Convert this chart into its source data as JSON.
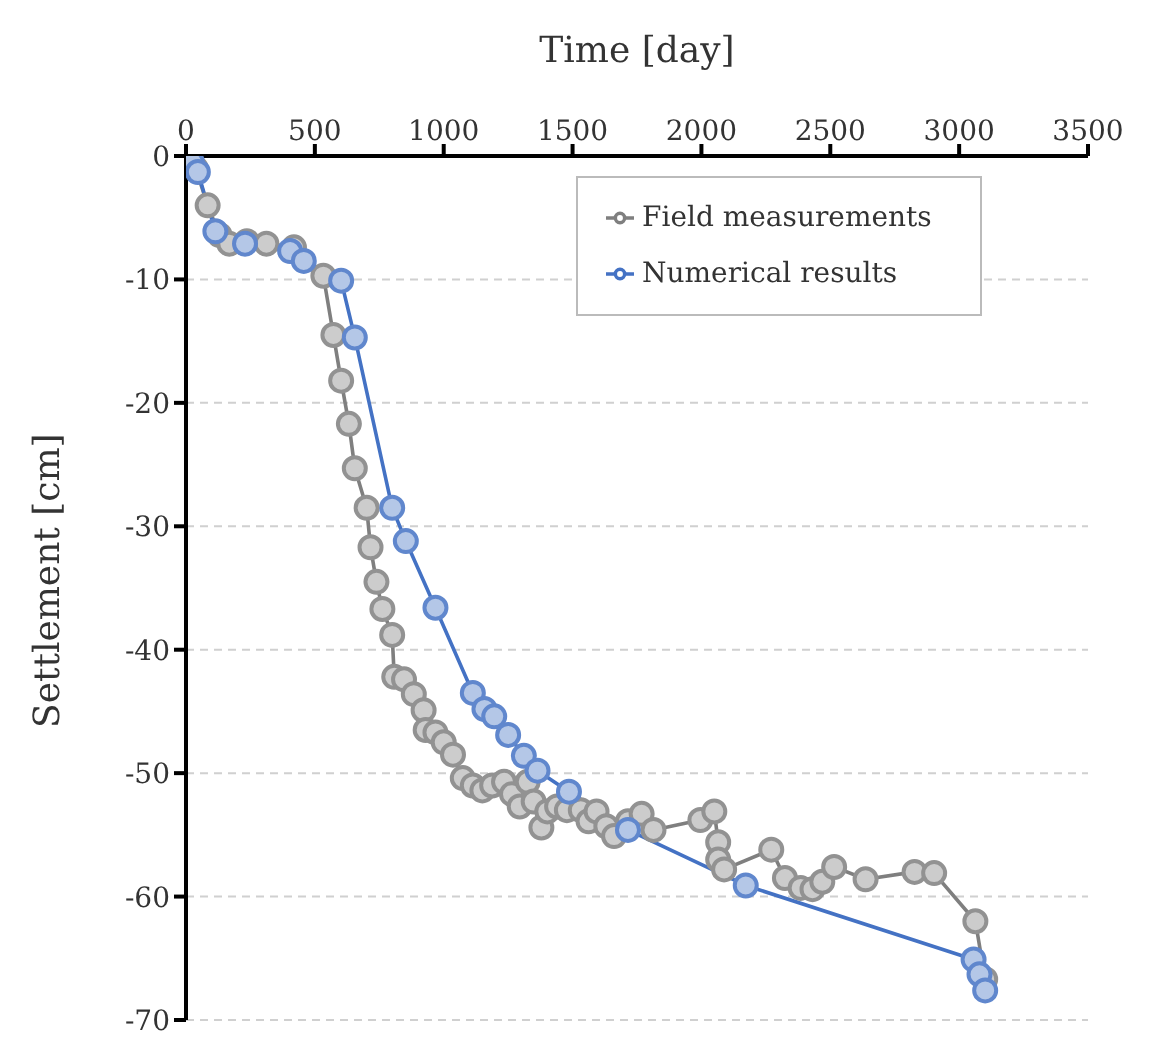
{
  "chart_data": {
    "type": "line",
    "xlabel": "Time [day]",
    "ylabel": "Settlement [cm]",
    "xlim": [
      0,
      3500
    ],
    "xticks": [
      0,
      500,
      1000,
      1500,
      2000,
      2500,
      3000,
      3500
    ],
    "ylim": [
      -70,
      0
    ],
    "yticks": [
      -70,
      -60,
      -50,
      -40,
      -30,
      -20,
      -10,
      0
    ],
    "grid": "y",
    "legend": "top right",
    "marker": "circle",
    "line_style": "solid",
    "series": [
      {
        "name": "Field measurements",
        "color": "#7f7f7f",
        "x": [
          0,
          38,
          84,
          130,
          168,
          236,
          312,
          419,
          533,
          572,
          602,
          632,
          655,
          701,
          716,
          739,
          762,
          800,
          808,
          846,
          884,
          922,
          930,
          968,
          1000,
          1036,
          1074,
          1113,
          1150,
          1188,
          1234,
          1265,
          1295,
          1326,
          1349,
          1379,
          1402,
          1440,
          1478,
          1532,
          1562,
          1593,
          1631,
          1661,
          1715,
          1768,
          1814,
          1996,
          2050,
          2065,
          2065,
          2088,
          2271,
          2324,
          2385,
          2431,
          2469,
          2515,
          2637,
          2827,
          2903,
          3063,
          3101
        ],
        "values": [
          0,
          -1,
          -4.0,
          -6.4,
          -7.1,
          -6.9,
          -7.1,
          -7.4,
          -9.7,
          -14.5,
          -18.2,
          -21.7,
          -25.3,
          -28.5,
          -31.7,
          -34.5,
          -36.7,
          -38.8,
          -42.2,
          -42.4,
          -43.6,
          -44.9,
          -46.5,
          -46.7,
          -47.5,
          -48.5,
          -50.4,
          -51.0,
          -51.4,
          -51.0,
          -50.7,
          -51.7,
          -52.7,
          -50.7,
          -52.3,
          -54.4,
          -53.1,
          -52.7,
          -53.0,
          -53.0,
          -53.9,
          -53.1,
          -54.3,
          -55.1,
          -53.9,
          -53.3,
          -54.6,
          -53.8,
          -53.1,
          -55.6,
          -57.0,
          -57.8,
          -56.2,
          -58.5,
          -59.3,
          -59.4,
          -58.8,
          -57.6,
          -58.6,
          -58.0,
          -58.1,
          -62.0,
          -66.7
        ]
      },
      {
        "name": "Numerical results",
        "color": "#4472c4",
        "x": [
          0,
          23,
          46,
          114,
          229,
          404,
          457,
          602,
          655,
          800,
          853,
          968,
          1113,
          1158,
          1196,
          1250,
          1311,
          1364,
          1486,
          1715,
          2172,
          3056,
          3079,
          3101
        ],
        "values": [
          0,
          -0.5,
          -1.3,
          -6.1,
          -7.1,
          -7.7,
          -8.5,
          -10.1,
          -14.7,
          -28.5,
          -31.2,
          -36.6,
          -43.5,
          -44.8,
          -45.4,
          -46.9,
          -48.6,
          -49.8,
          -51.5,
          -54.6,
          -59.1,
          -65.1,
          -66.3,
          -67.6
        ]
      }
    ]
  }
}
